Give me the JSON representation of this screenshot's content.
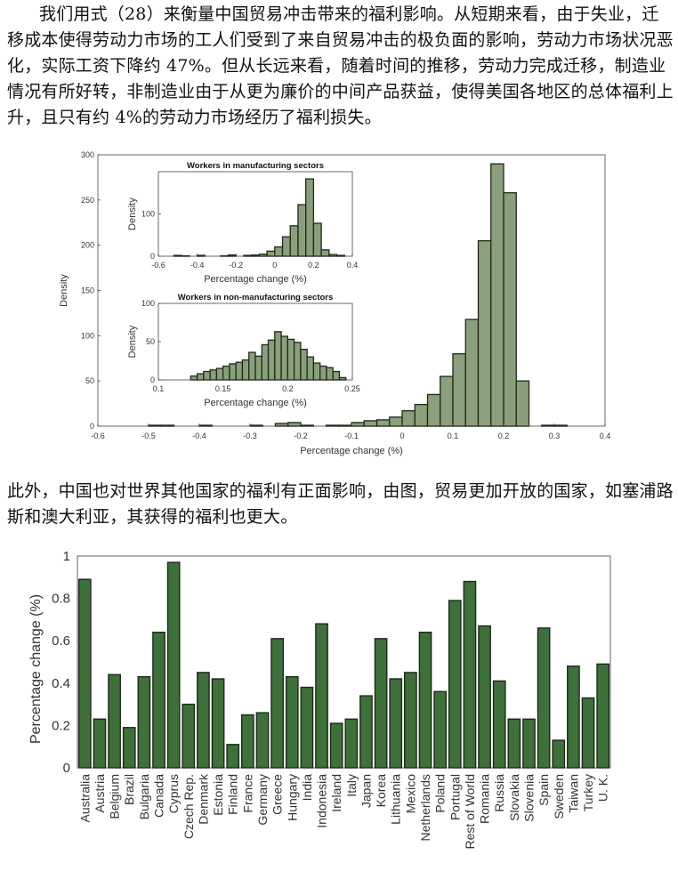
{
  "paragraph1": "我们用式（28）来衡量中国贸易冲击带来的福利影响。从短期来看，由于失业，迁移成本使得劳动力市场的工人们受到了来自贸易冲击的极负面的影响，劳动力市场状况恶化，实际工资下降约 47%。但从长远来看，随着时间的推移，劳动力完成迁移，制造业情况有所好转，非制造业由于从更为廉价的中间产品获益，使得美国各地区的总体福利上升，且只有约 4%的劳动力市场经历了福利损失。",
  "paragraph2": "此外，中国也对世界其他国家的福利有正面影响，由图，贸易更加开放的国家，如塞浦路斯和澳大利亚，其获得的福利也更大。",
  "chart_data": [
    {
      "type": "bar",
      "title": "",
      "xlabel": "Percentage change (%)",
      "ylabel": "Density",
      "xlim": [
        -0.6,
        0.4
      ],
      "ylim": [
        0,
        300
      ],
      "x_ticks": [
        -0.6,
        -0.5,
        -0.4,
        -0.3,
        -0.2,
        -0.1,
        0,
        0.1,
        0.2,
        0.3,
        0.4
      ],
      "y_ticks": [
        0,
        50,
        100,
        150,
        200,
        250,
        300
      ],
      "bin_width": 0.025,
      "bins": [
        {
          "x0": -0.5,
          "value": 1
        },
        {
          "x0": -0.475,
          "value": 1
        },
        {
          "x0": -0.4,
          "value": 1
        },
        {
          "x0": -0.3,
          "value": 1
        },
        {
          "x0": -0.25,
          "value": 3
        },
        {
          "x0": -0.225,
          "value": 4
        },
        {
          "x0": -0.2,
          "value": 1
        },
        {
          "x0": -0.15,
          "value": 1
        },
        {
          "x0": -0.125,
          "value": 1
        },
        {
          "x0": -0.1,
          "value": 4
        },
        {
          "x0": -0.075,
          "value": 6
        },
        {
          "x0": -0.05,
          "value": 7
        },
        {
          "x0": -0.025,
          "value": 10
        },
        {
          "x0": 0,
          "value": 17
        },
        {
          "x0": 0.025,
          "value": 24
        },
        {
          "x0": 0.05,
          "value": 35
        },
        {
          "x0": 0.075,
          "value": 55
        },
        {
          "x0": 0.1,
          "value": 80
        },
        {
          "x0": 0.125,
          "value": 118
        },
        {
          "x0": 0.15,
          "value": 205
        },
        {
          "x0": 0.175,
          "value": 290
        },
        {
          "x0": 0.2,
          "value": 258
        },
        {
          "x0": 0.225,
          "value": 50
        },
        {
          "x0": 0.275,
          "value": 1
        },
        {
          "x0": 0.3,
          "value": 1
        }
      ]
    },
    {
      "type": "bar",
      "title": "Workers in manufacturing sectors",
      "xlabel": "Percentage change (%)",
      "ylabel": "Density",
      "xlim": [
        -0.6,
        0.4
      ],
      "ylim": [
        0,
        200
      ],
      "x_ticks": [
        -0.6,
        -0.4,
        -0.2,
        0,
        0.2,
        0.4
      ],
      "x_tick_labels": [
        "-0.6",
        "-0.4",
        "-0.2",
        "0",
        "0.2",
        "0.4"
      ],
      "y_ticks": [
        0,
        100
      ],
      "bin_width": 0.04,
      "bins": [
        {
          "x0": -0.52,
          "value": 2
        },
        {
          "x0": -0.48,
          "value": 1
        },
        {
          "x0": -0.4,
          "value": 2
        },
        {
          "x0": -0.28,
          "value": 1
        },
        {
          "x0": -0.24,
          "value": 3
        },
        {
          "x0": -0.16,
          "value": 2
        },
        {
          "x0": -0.12,
          "value": 3
        },
        {
          "x0": -0.08,
          "value": 5
        },
        {
          "x0": -0.04,
          "value": 12
        },
        {
          "x0": 0,
          "value": 22
        },
        {
          "x0": 0.04,
          "value": 46
        },
        {
          "x0": 0.08,
          "value": 72
        },
        {
          "x0": 0.12,
          "value": 122
        },
        {
          "x0": 0.16,
          "value": 183
        },
        {
          "x0": 0.2,
          "value": 78
        },
        {
          "x0": 0.24,
          "value": 15
        },
        {
          "x0": 0.28,
          "value": 4
        },
        {
          "x0": 0.32,
          "value": 2
        }
      ]
    },
    {
      "type": "bar",
      "title": "Workers in non-manufacturing sectors",
      "xlabel": "Percentage change (%)",
      "ylabel": "Density",
      "xlim": [
        0.1,
        0.25
      ],
      "ylim": [
        0,
        100
      ],
      "x_ticks": [
        0.1,
        0.15,
        0.2,
        0.25
      ],
      "x_tick_labels": [
        "0.1",
        "0.15",
        "0.2",
        "0.25"
      ],
      "y_ticks": [
        0,
        50,
        100
      ],
      "bin_width": 0.005,
      "bins": [
        {
          "x0": 0.125,
          "value": 5
        },
        {
          "x0": 0.13,
          "value": 8
        },
        {
          "x0": 0.135,
          "value": 11
        },
        {
          "x0": 0.14,
          "value": 13
        },
        {
          "x0": 0.145,
          "value": 15
        },
        {
          "x0": 0.15,
          "value": 18
        },
        {
          "x0": 0.155,
          "value": 21
        },
        {
          "x0": 0.16,
          "value": 23
        },
        {
          "x0": 0.165,
          "value": 26
        },
        {
          "x0": 0.17,
          "value": 36
        },
        {
          "x0": 0.175,
          "value": 31
        },
        {
          "x0": 0.18,
          "value": 46
        },
        {
          "x0": 0.185,
          "value": 52
        },
        {
          "x0": 0.19,
          "value": 63
        },
        {
          "x0": 0.195,
          "value": 57
        },
        {
          "x0": 0.2,
          "value": 53
        },
        {
          "x0": 0.205,
          "value": 49
        },
        {
          "x0": 0.21,
          "value": 40
        },
        {
          "x0": 0.215,
          "value": 30
        },
        {
          "x0": 0.22,
          "value": 22
        },
        {
          "x0": 0.225,
          "value": 18
        },
        {
          "x0": 0.23,
          "value": 16
        },
        {
          "x0": 0.235,
          "value": 11
        },
        {
          "x0": 0.24,
          "value": 3
        }
      ]
    },
    {
      "type": "bar",
      "title": "",
      "xlabel": "",
      "ylabel": "Percentage change (%)",
      "ylim": [
        0,
        1
      ],
      "y_ticks": [
        0,
        0.2,
        0.4,
        0.6,
        0.8,
        1
      ],
      "y_tick_labels": [
        "0",
        "0.2",
        "0.4",
        "0.6",
        "0.8",
        "1"
      ],
      "categories": [
        "Australia",
        "Austria",
        "Belgium",
        "Brazil",
        "Bulgaria",
        "Canada",
        "Cyprus",
        "Czech Rep.",
        "Denmark",
        "Estonia",
        "Finland",
        "France",
        "Germany",
        "Greece",
        "Hungary",
        "India",
        "Indonesia",
        "Ireland",
        "Italy",
        "Japan",
        "Korea",
        "Lithuania",
        "Mexico",
        "Netherlands",
        "Poland",
        "Portugal",
        "Rest of World",
        "Romania",
        "Russia",
        "Slovakia",
        "Slovenia",
        "Spain",
        "Sweden",
        "Taiwan",
        "Turkey",
        "U. K."
      ],
      "values": [
        0.89,
        0.23,
        0.44,
        0.19,
        0.43,
        0.64,
        0.97,
        0.3,
        0.45,
        0.42,
        0.11,
        0.25,
        0.26,
        0.61,
        0.43,
        0.38,
        0.68,
        0.21,
        0.23,
        0.34,
        0.61,
        0.42,
        0.45,
        0.64,
        0.36,
        0.79,
        0.88,
        0.67,
        0.41,
        0.23,
        0.23,
        0.66,
        0.13,
        0.48,
        0.33,
        0.49
      ]
    }
  ]
}
